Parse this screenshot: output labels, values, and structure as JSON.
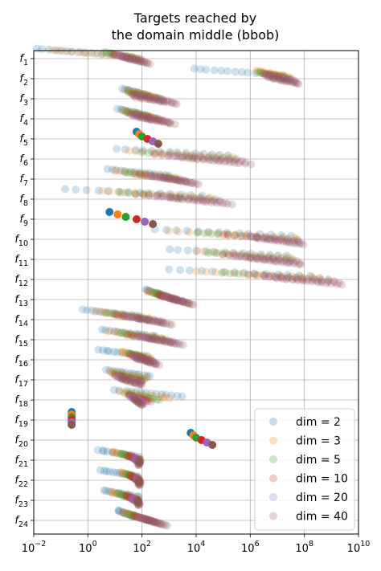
{
  "chart_data": {
    "type": "scatter",
    "title_lines": [
      "Targets reached by",
      "the domain middle (bbob)"
    ],
    "xlabel": "",
    "ylabel": "",
    "x_scale": "log",
    "xlim": [
      0.01,
      10000000000
    ],
    "x_ticks": [
      {
        "base": "10",
        "exp": "−2",
        "value": 0.01
      },
      {
        "base": "10",
        "exp": "0",
        "value": 1
      },
      {
        "base": "10",
        "exp": "2",
        "value": 100
      },
      {
        "base": "10",
        "exp": "4",
        "value": 10000
      },
      {
        "base": "10",
        "exp": "6",
        "value": 1000000
      },
      {
        "base": "10",
        "exp": "8",
        "value": 100000000
      },
      {
        "base": "10",
        "exp": "10",
        "value": 10000000000
      }
    ],
    "grid": true,
    "legend_position": "bottom-right",
    "categories": [
      {
        "base": "f",
        "sub": "1"
      },
      {
        "base": "f",
        "sub": "2"
      },
      {
        "base": "f",
        "sub": "3"
      },
      {
        "base": "f",
        "sub": "4"
      },
      {
        "base": "f",
        "sub": "5"
      },
      {
        "base": "f",
        "sub": "6"
      },
      {
        "base": "f",
        "sub": "7"
      },
      {
        "base": "f",
        "sub": "8"
      },
      {
        "base": "f",
        "sub": "9"
      },
      {
        "base": "f",
        "sub": "10"
      },
      {
        "base": "f",
        "sub": "11"
      },
      {
        "base": "f",
        "sub": "12"
      },
      {
        "base": "f",
        "sub": "13"
      },
      {
        "base": "f",
        "sub": "14"
      },
      {
        "base": "f",
        "sub": "15"
      },
      {
        "base": "f",
        "sub": "16"
      },
      {
        "base": "f",
        "sub": "17"
      },
      {
        "base": "f",
        "sub": "18"
      },
      {
        "base": "f",
        "sub": "19"
      },
      {
        "base": "f",
        "sub": "20"
      },
      {
        "base": "f",
        "sub": "21"
      },
      {
        "base": "f",
        "sub": "22"
      },
      {
        "base": "f",
        "sub": "23"
      },
      {
        "base": "f",
        "sub": "24"
      }
    ],
    "series": [
      {
        "name": "dim = 2",
        "color": "#1f77b4"
      },
      {
        "name": "dim = 3",
        "color": "#ff7f0e"
      },
      {
        "name": "dim = 5",
        "color": "#2ca02c"
      },
      {
        "name": "dim = 10",
        "color": "#d62728"
      },
      {
        "name": "dim = 20",
        "color": "#9467bd"
      },
      {
        "name": "dim = 40",
        "color": "#8c564b"
      }
    ],
    "ranges_log10": [
      [
        [
          -1.9,
          1.0
        ],
        [
          -1.3,
          1.6
        ],
        [
          0.6,
          1.9
        ],
        [
          0.9,
          2.0
        ],
        [
          1.1,
          2.1
        ],
        [
          1.3,
          2.3
        ]
      ],
      [
        [
          3.9,
          7.2
        ],
        [
          6.2,
          7.4
        ],
        [
          6.3,
          7.5
        ],
        [
          6.5,
          7.6
        ],
        [
          6.6,
          7.7
        ],
        [
          6.7,
          7.8
        ]
      ],
      [
        [
          1.3,
          2.2
        ],
        [
          1.4,
          2.5
        ],
        [
          1.5,
          2.7
        ],
        [
          1.6,
          2.9
        ],
        [
          1.7,
          3.1
        ],
        [
          1.8,
          3.3
        ]
      ],
      [
        [
          1.1,
          2.2
        ],
        [
          1.3,
          2.4
        ],
        [
          1.4,
          2.6
        ],
        [
          1.6,
          2.8
        ],
        [
          1.7,
          3.0
        ],
        [
          1.9,
          3.2
        ]
      ],
      [
        [
          1.8,
          1.8
        ],
        [
          1.9,
          1.9
        ],
        [
          2.0,
          2.0
        ],
        [
          2.2,
          2.2
        ],
        [
          2.4,
          2.4
        ],
        [
          2.6,
          2.6
        ]
      ],
      [
        [
          1.1,
          5.2
        ],
        [
          1.5,
          5.4
        ],
        [
          2.0,
          5.5
        ],
        [
          2.5,
          5.7
        ],
        [
          3.0,
          5.8
        ],
        [
          3.5,
          6.0
        ]
      ],
      [
        [
          0.7,
          3.0
        ],
        [
          1.0,
          3.2
        ],
        [
          1.4,
          3.4
        ],
        [
          1.8,
          3.6
        ],
        [
          2.3,
          3.9
        ],
        [
          2.8,
          4.1
        ]
      ],
      [
        [
          -0.8,
          4.2
        ],
        [
          0.5,
          4.5
        ],
        [
          1.2,
          4.7
        ],
        [
          1.8,
          4.9
        ],
        [
          2.5,
          5.1
        ],
        [
          3.0,
          5.3
        ]
      ],
      [
        [
          0.8,
          0.8
        ],
        [
          1.1,
          1.1
        ],
        [
          1.4,
          1.4
        ],
        [
          1.8,
          1.8
        ],
        [
          2.1,
          2.1
        ],
        [
          2.4,
          2.4
        ]
      ],
      [
        [
          2.5,
          7.5
        ],
        [
          3.0,
          7.6
        ],
        [
          4.0,
          7.7
        ],
        [
          5.0,
          7.8
        ],
        [
          6.0,
          7.9
        ],
        [
          6.2,
          8.0
        ]
      ],
      [
        [
          3.0,
          7.4
        ],
        [
          4.0,
          7.5
        ],
        [
          4.5,
          7.6
        ],
        [
          5.0,
          7.7
        ],
        [
          5.5,
          7.8
        ],
        [
          6.0,
          7.9
        ]
      ],
      [
        [
          3.0,
          8.2
        ],
        [
          4.0,
          8.6
        ],
        [
          5.0,
          8.9
        ],
        [
          6.0,
          9.1
        ],
        [
          6.5,
          9.3
        ],
        [
          7.0,
          9.4
        ]
      ],
      [
        [
          2.1,
          2.9
        ],
        [
          2.2,
          3.1
        ],
        [
          2.4,
          3.3
        ],
        [
          2.6,
          3.5
        ],
        [
          2.8,
          3.7
        ],
        [
          3.0,
          3.9
        ]
      ],
      [
        [
          -0.2,
          1.9
        ],
        [
          0.3,
          2.2
        ],
        [
          0.7,
          2.4
        ],
        [
          1.0,
          2.7
        ],
        [
          1.4,
          2.9
        ],
        [
          1.8,
          3.1
        ]
      ],
      [
        [
          0.5,
          2.5
        ],
        [
          0.8,
          2.7
        ],
        [
          1.2,
          2.9
        ],
        [
          1.5,
          3.1
        ],
        [
          1.9,
          3.3
        ],
        [
          2.2,
          3.5
        ]
      ],
      [
        [
          0.4,
          2.2
        ],
        [
          1.2,
          2.3
        ],
        [
          1.5,
          2.3
        ],
        [
          1.6,
          2.4
        ],
        [
          1.7,
          2.5
        ],
        [
          1.8,
          2.6
        ]
      ],
      [
        [
          0.7,
          2.3
        ],
        [
          0.8,
          2.2
        ],
        [
          0.9,
          2.1
        ],
        [
          1.0,
          2.0
        ],
        [
          1.1,
          2.0
        ],
        [
          1.2,
          2.0
        ]
      ],
      [
        [
          1.0,
          3.5
        ],
        [
          1.2,
          3.0
        ],
        [
          1.4,
          2.6
        ],
        [
          1.5,
          2.3
        ],
        [
          1.6,
          2.1
        ],
        [
          1.7,
          2.0
        ]
      ],
      [
        [
          -0.6,
          -0.6
        ],
        [
          -0.6,
          -0.6
        ],
        [
          -0.6,
          -0.6
        ],
        [
          -0.6,
          -0.6
        ],
        [
          -0.6,
          -0.6
        ],
        [
          -0.6,
          -0.6
        ]
      ],
      [
        [
          3.8,
          3.8
        ],
        [
          3.9,
          3.9
        ],
        [
          4.0,
          4.0
        ],
        [
          4.2,
          4.2
        ],
        [
          4.4,
          4.4
        ],
        [
          4.6,
          4.6
        ]
      ],
      [
        [
          0.4,
          1.9
        ],
        [
          0.9,
          1.9
        ],
        [
          1.2,
          1.9
        ],
        [
          1.5,
          1.9
        ],
        [
          1.7,
          1.9
        ],
        [
          1.9,
          1.9
        ]
      ],
      [
        [
          0.5,
          1.9
        ],
        [
          1.2,
          1.9
        ],
        [
          1.4,
          1.9
        ],
        [
          1.6,
          1.9
        ],
        [
          1.8,
          1.9
        ],
        [
          1.9,
          1.9
        ]
      ],
      [
        [
          0.6,
          1.9
        ],
        [
          0.8,
          1.9
        ],
        [
          1.1,
          1.9
        ],
        [
          1.4,
          1.9
        ],
        [
          1.6,
          1.9
        ],
        [
          1.8,
          1.9
        ]
      ],
      [
        [
          1.1,
          1.7
        ],
        [
          1.3,
          2.0
        ],
        [
          1.5,
          2.3
        ],
        [
          1.7,
          2.5
        ],
        [
          1.9,
          2.7
        ],
        [
          2.1,
          2.9
        ]
      ]
    ],
    "solid_rows": [
      5,
      9,
      19,
      20
    ]
  }
}
